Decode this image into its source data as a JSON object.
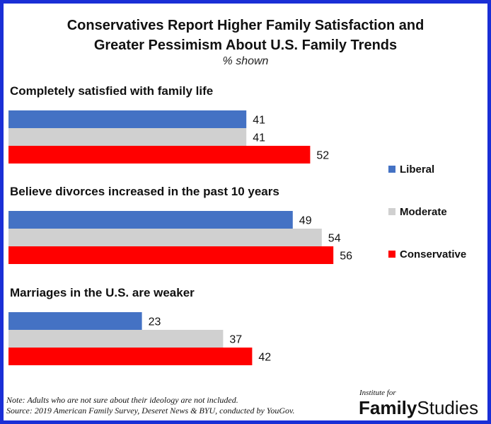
{
  "title_line1": "Conservatives Report Higher Family Satisfaction  and",
  "title_line2": "Greater Pessimism About U.S. Family Trends",
  "subtitle": "% shown",
  "chart_data": {
    "type": "bar",
    "orientation": "horizontal",
    "title": "Conservatives Report Higher Family Satisfaction and Greater Pessimism About U.S. Family Trends",
    "subtitle": "% shown",
    "categories": [
      "Completely satisfied with family life",
      "Believe divorces increased in the past 10 years",
      "Marriages  in the U.S. are weaker"
    ],
    "series": [
      {
        "name": "Liberal",
        "color": "#4472c4",
        "values": [
          41,
          49,
          23
        ]
      },
      {
        "name": "Moderate",
        "color": "#d0d0d0",
        "values": [
          41,
          54,
          37
        ]
      },
      {
        "name": "Conservative",
        "color": "#ff0000",
        "values": [
          52,
          56,
          42
        ]
      }
    ],
    "xlim": [
      0,
      80
    ],
    "grid": false,
    "legend_position": "right"
  },
  "note_line1": "Note: Adults who are not sure about their ideology are not included.",
  "note_line2": "Source: 2019 American Family Survey, Deseret News & BYU, conducted by YouGov.",
  "logo": {
    "small": "Institute for",
    "word1": "Family",
    "word2": "Studies"
  }
}
